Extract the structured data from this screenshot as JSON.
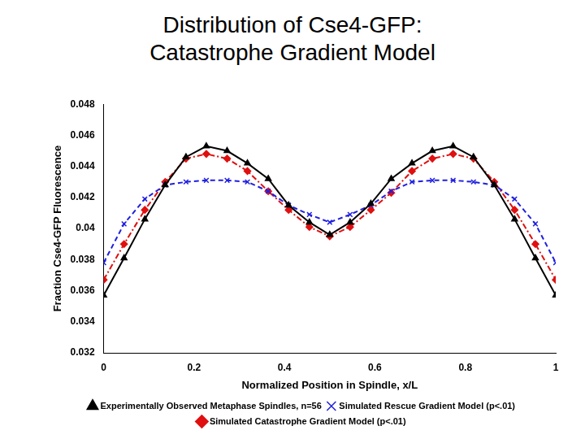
{
  "chart_data": {
    "type": "line",
    "title": "Distribution of Cse4-GFP: Catastrophe Gradient Model",
    "x_label": "Normalized Position in Spindle, x/L",
    "y_label": "Fraction Cse4-GFP Fluorescence",
    "x": [
      0,
      0.045,
      0.091,
      0.136,
      0.182,
      0.227,
      0.273,
      0.318,
      0.364,
      0.409,
      0.455,
      0.5,
      0.545,
      0.591,
      0.636,
      0.682,
      0.727,
      0.773,
      0.818,
      0.864,
      0.909,
      0.955,
      1
    ],
    "series": [
      {
        "name": "Experimentally Observed Metaphase Spindles, n=56",
        "color": "#000000",
        "marker": "triangle",
        "line_style": "solid",
        "values": [
          0.0357,
          0.0381,
          0.0406,
          0.0428,
          0.0446,
          0.0453,
          0.045,
          0.0442,
          0.0432,
          0.0415,
          0.0404,
          0.0396,
          0.0404,
          0.0416,
          0.0432,
          0.0442,
          0.045,
          0.0453,
          0.0446,
          0.0428,
          0.0406,
          0.0381,
          0.0357
        ]
      },
      {
        "name": "Simulated Rescue Gradient Model (p<.01)",
        "color": "#1f1fe0",
        "marker": "cross",
        "line_style": "dashed",
        "values": [
          0.0378,
          0.0403,
          0.0419,
          0.0428,
          0.043,
          0.0431,
          0.0431,
          0.043,
          0.0424,
          0.0415,
          0.0409,
          0.0404,
          0.0409,
          0.0415,
          0.0424,
          0.043,
          0.0431,
          0.0431,
          0.043,
          0.0428,
          0.0419,
          0.0403,
          0.0378
        ]
      },
      {
        "name": "Simulated Catastrophe Gradient Model (p<.01)",
        "color": "#e01010",
        "marker": "diamond",
        "line_style": "dashdot",
        "values": [
          0.0367,
          0.039,
          0.0412,
          0.043,
          0.0445,
          0.0448,
          0.0445,
          0.0437,
          0.0424,
          0.0412,
          0.0401,
          0.0395,
          0.0401,
          0.0412,
          0.0423,
          0.0437,
          0.0445,
          0.0448,
          0.0445,
          0.043,
          0.0412,
          0.039,
          0.0367
        ]
      }
    ],
    "xlim": [
      0,
      1
    ],
    "xticks": [
      0,
      0.2,
      0.4,
      0.6,
      0.8,
      1
    ],
    "ylim": [
      0.032,
      0.048
    ],
    "yticks": [
      0.032,
      0.034,
      0.036,
      0.038,
      0.04,
      0.042,
      0.044,
      0.046,
      0.048
    ],
    "grid": false,
    "legend": "bottom"
  }
}
